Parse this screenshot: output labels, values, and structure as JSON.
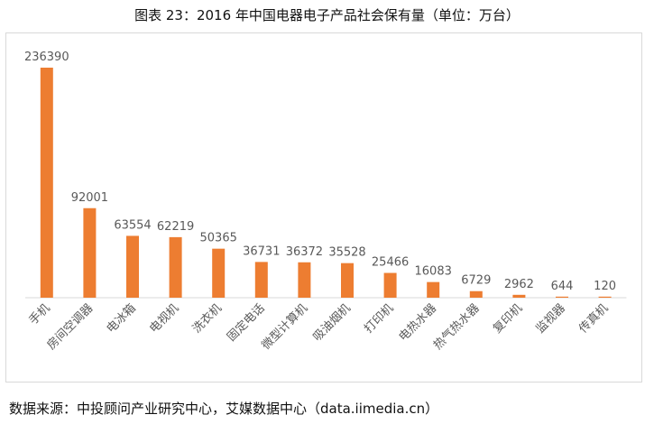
{
  "title": "图表 23：2016 年中国电器电子产品社会保有量（单位：万台）",
  "source": "数据来源：中投顾问产业研究中心，艾媒数据中心（data.iimedia.cn）",
  "colors": {
    "bar": "#ed7d31",
    "label": "#595959",
    "axis": "#d9d9d9"
  },
  "chart_data": {
    "type": "bar",
    "categories": [
      "手机",
      "房间空调器",
      "电冰箱",
      "电视机",
      "洗衣机",
      "固定电话",
      "微型计算机",
      "吸油烟机",
      "打印机",
      "电热水器",
      "热气热水器",
      "复印机",
      "监视器",
      "传真机"
    ],
    "values": [
      236390,
      92001,
      63554,
      62219,
      50365,
      36731,
      36372,
      35528,
      25466,
      16083,
      6729,
      2962,
      644,
      120
    ],
    "ylim": [
      0,
      236390
    ],
    "xlabel": "",
    "ylabel": "",
    "legend": "none",
    "grid": false
  }
}
